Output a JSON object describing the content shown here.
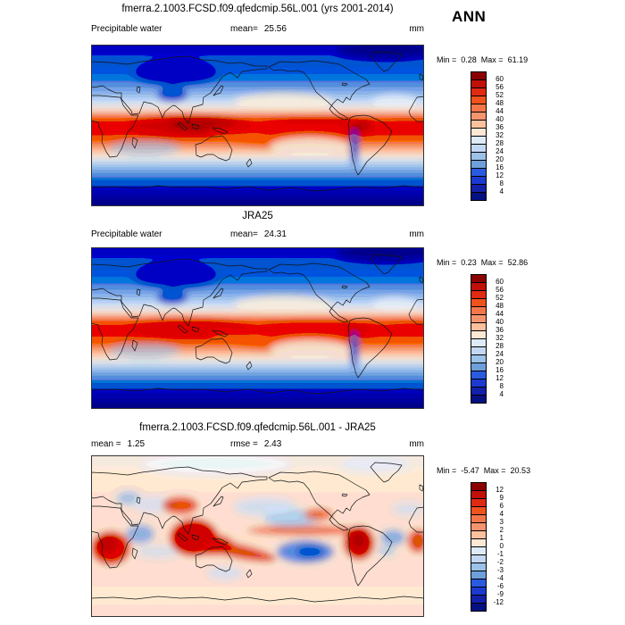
{
  "season_label": "ANN",
  "panels": [
    {
      "title": "fmerra.2.1003.FCSD.f09.qfedcmip.56L.001 (yrs 2001-2014)",
      "variable_label": "Precipitable water",
      "stats": {
        "mean_label": "mean=",
        "mean_value": "25.56",
        "units": "mm"
      },
      "range": {
        "min_label": "Min =",
        "min_value": "0.28",
        "max_label": "Max =",
        "max_value": "61.19"
      },
      "colorbar": {
        "ticks": [
          "60",
          "56",
          "52",
          "48",
          "44",
          "40",
          "36",
          "32",
          "28",
          "24",
          "20",
          "16",
          "12",
          "8",
          "4"
        ],
        "colors": [
          "#8b0000",
          "#c01008",
          "#e02a12",
          "#f0521c",
          "#f4764a",
          "#f79470",
          "#fbc19e",
          "#fde8d6",
          "#ddeaf8",
          "#c2d8f2",
          "#9dc2e8",
          "#6f9fda",
          "#2a5ae0",
          "#1c3ad0",
          "#1320a8",
          "#061080"
        ]
      }
    },
    {
      "title": "JRA25",
      "variable_label": "Precipitable water",
      "stats": {
        "mean_label": "mean=",
        "mean_value": "24.31",
        "units": "mm"
      },
      "range": {
        "min_label": "Min =",
        "min_value": "0.23",
        "max_label": "Max =",
        "max_value": "52.86"
      },
      "colorbar": {
        "ticks": [
          "60",
          "56",
          "52",
          "48",
          "44",
          "40",
          "36",
          "32",
          "28",
          "24",
          "20",
          "16",
          "12",
          "8",
          "4"
        ],
        "colors": [
          "#8b0000",
          "#c01008",
          "#e02a12",
          "#f0521c",
          "#f4764a",
          "#f79470",
          "#fbc19e",
          "#fde8d6",
          "#ddeaf8",
          "#c2d8f2",
          "#9dc2e8",
          "#6f9fda",
          "#2a5ae0",
          "#1c3ad0",
          "#1320a8",
          "#061080"
        ]
      }
    },
    {
      "title": "fmerra.2.1003.FCSD.f09.qfedcmip.56L.001 - JRA25",
      "stats": {
        "mean_label": "mean =",
        "mean_value": "1.25",
        "rmse_label": "rmse =",
        "rmse_value": "2.43",
        "units": "mm"
      },
      "range": {
        "min_label": "Min =",
        "min_value": "-5.47",
        "max_label": "Max =",
        "max_value": "20.53"
      },
      "colorbar": {
        "ticks": [
          "12",
          "9",
          "6",
          "4",
          "3",
          "2",
          "1",
          "0",
          "-1",
          "-2",
          "-3",
          "-4",
          "-6",
          "-9",
          "-12"
        ],
        "colors": [
          "#8b0000",
          "#c01008",
          "#e02a12",
          "#f0521c",
          "#f4764a",
          "#f79470",
          "#fbc19e",
          "#fde8d6",
          "#ddeaf8",
          "#c2d8f2",
          "#9dc2e8",
          "#6f9fda",
          "#2a5ae0",
          "#1c3ad0",
          "#1320a8",
          "#061080"
        ]
      }
    }
  ],
  "chart_data": [
    {
      "type": "heatmap",
      "subtype": "filled-contour global map, equirectangular, lon 0-360E, lat 90N-90S",
      "title": "fmerra.2.1003.FCSD.f09.qfedcmip.56L.001 (yrs 2001-2014)",
      "variable": "Precipitable water",
      "units": "mm",
      "season": "ANN",
      "mean": 25.56,
      "min": 0.28,
      "max": 61.19,
      "contour_levels": [
        4,
        8,
        12,
        16,
        20,
        24,
        28,
        32,
        36,
        40,
        44,
        48,
        52,
        56,
        60
      ],
      "palette": "16-class blue-white-red (low=dark blue, high=dark red)",
      "legend_position": "right",
      "pattern": "high values (red, >40mm) in tropical band peaking over Indo-Pacific warm pool and Amazon; low values (blue, <12mm) at poles, Siberia, Tibet and Antarctica"
    },
    {
      "type": "heatmap",
      "subtype": "filled-contour global map, equirectangular, lon 0-360E, lat 90N-90S",
      "title": "JRA25",
      "variable": "Precipitable water",
      "units": "mm",
      "season": "ANN",
      "mean": 24.31,
      "min": 0.23,
      "max": 52.86,
      "contour_levels": [
        4,
        8,
        12,
        16,
        20,
        24,
        28,
        32,
        36,
        40,
        44,
        48,
        52,
        56,
        60
      ],
      "palette": "16-class blue-white-red (low=dark blue, high=dark red)",
      "legend_position": "right",
      "pattern": "same tropical maximum / polar minimum structure as model panel but slightly weaker maxima"
    },
    {
      "type": "heatmap",
      "subtype": "difference map (model minus reanalysis), equirectangular, lon 0-360E, lat 90N-90S",
      "title": "fmerra.2.1003.FCSD.f09.qfedcmip.56L.001 - JRA25",
      "variable": "Precipitable water difference",
      "units": "mm",
      "season": "ANN",
      "mean": 1.25,
      "rmse": 2.43,
      "min": -5.47,
      "max": 20.53,
      "contour_levels": [
        -12,
        -9,
        -6,
        -4,
        -3,
        -2,
        -1,
        0,
        1,
        2,
        3,
        4,
        6,
        9,
        12
      ],
      "palette": "16-class blue-white-red (negative=blue, positive=red)",
      "legend_position": "right",
      "pattern": "positive bias (red) over Africa, maritime continent, SPCZ diagonal and tropical South America; negative bias (blue) over subtropical Pacific, Indian ocean and Atlantic; near-zero pale background elsewhere"
    }
  ]
}
